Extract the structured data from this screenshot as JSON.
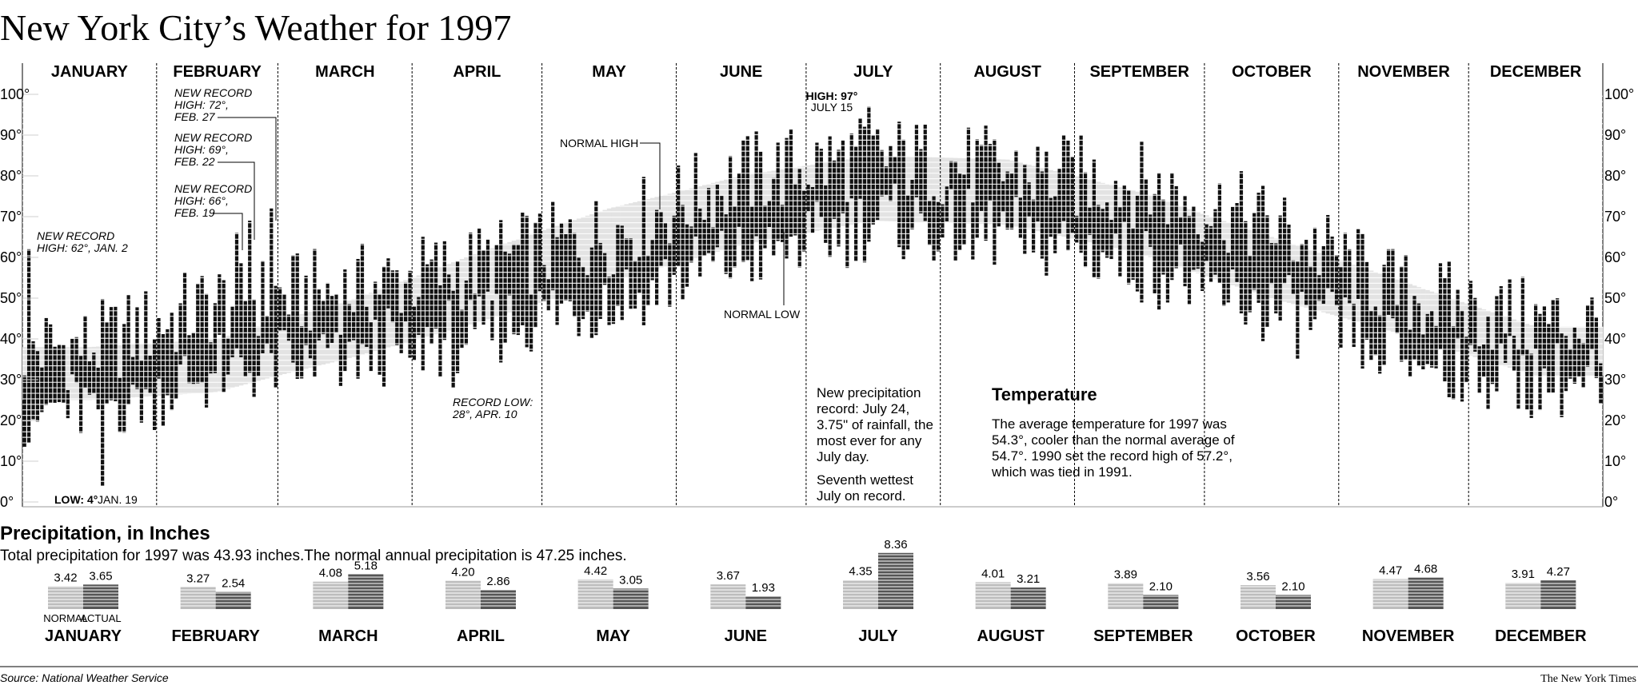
{
  "title": "New York City’s Weather for 1997",
  "colors": {
    "actual": "#111111",
    "normal_band": "#e3e3e3",
    "normal_precip": "#bdbdbd",
    "actual_precip": "#555555"
  },
  "months": [
    "JANUARY",
    "FEBRUARY",
    "MARCH",
    "APRIL",
    "MAY",
    "JUNE",
    "JULY",
    "AUGUST",
    "SEPTEMBER",
    "OCTOBER",
    "NOVEMBER",
    "DECEMBER"
  ],
  "chart_data": [
    {
      "type": "bar",
      "title": "Temperature",
      "description": "Daily temperature ranges (high/low, °F) for New York City in 1997, against the normal range band.",
      "ylim": [
        0,
        100
      ],
      "yticks": [
        "0°",
        "10°",
        "20°",
        "30°",
        "40°",
        "50°",
        "60°",
        "70°",
        "80°",
        "90°",
        "100°"
      ],
      "months": [
        "JANUARY",
        "FEBRUARY",
        "MARCH",
        "APRIL",
        "MAY",
        "JUNE",
        "JULY",
        "AUGUST",
        "SEPTEMBER",
        "OCTOBER",
        "NOVEMBER",
        "DECEMBER"
      ],
      "days_in_month": [
        31,
        28,
        31,
        30,
        31,
        30,
        31,
        31,
        30,
        31,
        30,
        31
      ],
      "monthly_actual_high": [
        38,
        49,
        52,
        58,
        66,
        80,
        85,
        81,
        78,
        68,
        51,
        44
      ],
      "monthly_actual_low": [
        23,
        32,
        36,
        42,
        50,
        60,
        69,
        66,
        59,
        47,
        37,
        30
      ],
      "monthly_normal_high": [
        38,
        40,
        49,
        61,
        72,
        80,
        85,
        84,
        76,
        65,
        54,
        43
      ],
      "monthly_normal_low": [
        25,
        27,
        35,
        44,
        54,
        63,
        69,
        68,
        61,
        50,
        41,
        31
      ],
      "records": [
        {
          "date": "JAN. 2",
          "value": 62
        },
        {
          "date": "FEB. 19",
          "value": 66
        },
        {
          "date": "FEB. 22",
          "value": 69
        },
        {
          "date": "FEB. 27",
          "value": 72
        },
        {
          "date": "JULY 15",
          "value": 97
        },
        {
          "date": "JAN. 19",
          "value": 4
        },
        {
          "date": "APR. 10",
          "value": 28
        }
      ],
      "annotations": {
        "jan2": [
          "NEW RECORD",
          "HIGH: 62°, JAN. 2"
        ],
        "feb27": [
          "NEW RECORD",
          "HIGH: 72°,",
          "FEB. 27"
        ],
        "feb22": [
          "NEW RECORD",
          "HIGH: 69°,",
          "FEB. 22"
        ],
        "feb19": [
          "NEW RECORD",
          "HIGH: 66°,",
          "FEB. 19"
        ],
        "normal_high": "NORMAL HIGH",
        "normal_low": "NORMAL LOW",
        "high_bold": "HIGH: 97°",
        "high_date": "JULY 15",
        "low_bold": "LOW: 4°",
        "low_date": "JAN. 19",
        "record_low": [
          "RECORD LOW:",
          "28°, APR. 10"
        ],
        "july_precip": [
          "New precipitation",
          "record: July 24,",
          "3.75\" of rainfall, the",
          "most ever for any",
          "July day."
        ],
        "july_wettest": [
          "Seventh wettest",
          "July on record."
        ]
      },
      "summary_heading": "Temperature",
      "summary_text": [
        "The average temperature for 1997 was",
        "54.3°, cooler than the normal average of",
        "54.7°. 1990 set the record high of 57.2°,",
        "which was tied in 1991."
      ]
    },
    {
      "type": "bar",
      "title": "Precipitation, in Inches",
      "subtitle": "Total precipitation for 1997 was 43.93 inches.The normal annual precipitation is 47.25 inches.",
      "categories": [
        "JANUARY",
        "FEBRUARY",
        "MARCH",
        "APRIL",
        "MAY",
        "JUNE",
        "JULY",
        "AUGUST",
        "SEPTEMBER",
        "OCTOBER",
        "NOVEMBER",
        "DECEMBER"
      ],
      "series": [
        {
          "name": "NORMAL",
          "values": [
            3.42,
            3.27,
            4.08,
            4.2,
            4.42,
            3.67,
            4.35,
            4.01,
            3.89,
            3.56,
            4.47,
            3.91
          ]
        },
        {
          "name": "ACTUAL",
          "values": [
            3.65,
            2.54,
            5.18,
            2.86,
            3.05,
            1.93,
            8.36,
            3.21,
            2.1,
            2.1,
            4.68,
            4.27
          ]
        }
      ],
      "labels": [
        "3.42",
        "3.65",
        "3.27",
        "2.54",
        "4.08",
        "5.18",
        "4.20",
        "2.86",
        "4.42",
        "3.05",
        "3.67",
        "1.93",
        "4.35",
        "8.36",
        "4.01",
        "3.21",
        "3.89",
        "2.10",
        "3.56",
        "2.10",
        "4.47",
        "4.68",
        "3.91",
        "4.27"
      ]
    }
  ],
  "footer": {
    "source": "Source: National Weather Service",
    "credit": "The New York Times"
  }
}
